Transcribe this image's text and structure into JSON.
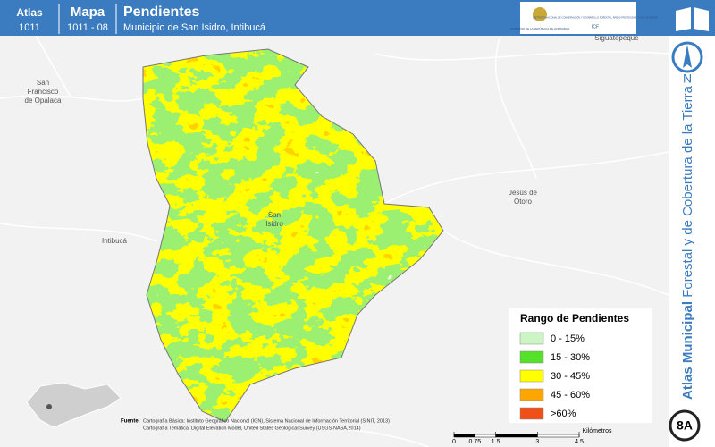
{
  "header": {
    "atlas_label": "Atlas",
    "atlas_code": "1011",
    "mapa_label": "Mapa",
    "mapa_code": "1011 - 08",
    "title": "Pendientes",
    "subtitle": "Municipio de San Isidro, Intibucá",
    "agency_1": "GOBIERNO DE LA REPÚBLICA DE HONDURAS",
    "agency_2": "INSTITUTO NACIONAL DE CONSERVACIÓN Y DESARROLLO FORESTAL, ÁREAS PROTEGIDAS Y VIDA SILVESTRE",
    "agency_3": "ICF"
  },
  "places": [
    {
      "name": "San Francisco de Opalaca",
      "lines": [
        "San",
        "Francisco",
        "de Opalaca"
      ]
    },
    {
      "name": "Intibucá"
    },
    {
      "name": "San Isidro",
      "lines": [
        "San",
        "Isidro"
      ]
    },
    {
      "name": "Jesús de Otoro",
      "lines": [
        "Jesús de",
        "Otoro"
      ]
    },
    {
      "name": "Siguatepeque"
    }
  ],
  "legend": {
    "title": "Rango de Pendientes",
    "items": [
      {
        "label": "0 - 15%",
        "color": "#ccf5c4"
      },
      {
        "label": "15 - 30%",
        "color": "#55e02a"
      },
      {
        "label": "30 - 45%",
        "color": "#ffff00"
      },
      {
        "label": "45 - 60%",
        "color": "#ffa500"
      },
      {
        "label": ">60%",
        "color": "#f05018"
      }
    ]
  },
  "sidebar": {
    "title_bold": "Atlas Municipal",
    "title_rest": "Forestal y de Cobertura de la Tierra",
    "north": "N",
    "page": "8A"
  },
  "source": {
    "label": "Fuente:",
    "lines": [
      "Cartografía Básica: Instituto Geográfico Nacional (IGN), Sistema Nacional de Información Territorial (SINIT, 2013)",
      "Cartografía Temática: Digital Elevation Model, United States Geological Survey (USGS-NASA,2014)"
    ]
  },
  "scale": {
    "unit": "Kilómetros",
    "ticks": [
      0,
      0.75,
      1.5,
      3,
      4.5
    ]
  }
}
